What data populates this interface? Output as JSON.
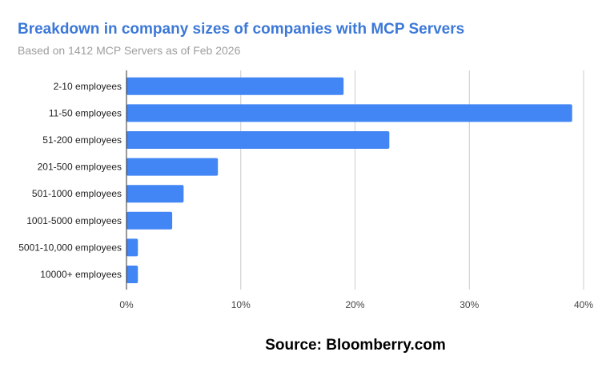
{
  "chart_data": {
    "type": "bar",
    "orientation": "horizontal",
    "title": "Breakdown in company sizes of companies with MCP Servers",
    "subtitle": "Based on 1412 MCP Servers as of Feb 2026",
    "categories": [
      "2-10 employees",
      "11-50 employees",
      "51-200 employees",
      "201-500 employees",
      "501-1000 employees",
      "1001-5000 employees",
      "5001-10,000 employees",
      "10000+ employees"
    ],
    "values": [
      19,
      39,
      23,
      8,
      5,
      4,
      1,
      1
    ],
    "xlabel": "",
    "ylabel": "",
    "xlim": [
      0,
      40
    ],
    "xticks": [
      0,
      10,
      20,
      30,
      40
    ],
    "xtick_labels": [
      "0%",
      "10%",
      "20%",
      "30%",
      "40%"
    ],
    "grid": true,
    "legend": "none",
    "bar_color": "#4285f4",
    "title_color": "#3c78d8",
    "annotation": "Source: Bloomberry.com"
  }
}
